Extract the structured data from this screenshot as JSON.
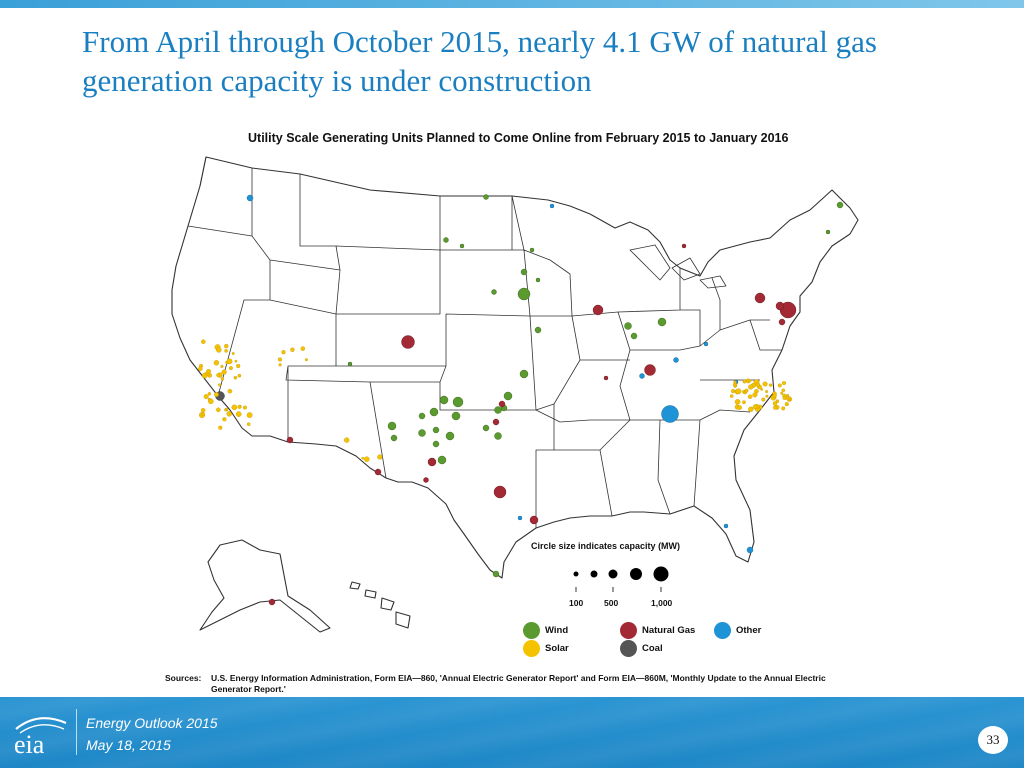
{
  "slide": {
    "title": "From April through October 2015, nearly 4.1 GW of natural gas generation capacity is under construction",
    "map_title": "Utility Scale Generating Units Planned to Come Online from February 2015 to January 2016",
    "page_number": "33"
  },
  "legend": {
    "capacity_title": "Circle size indicates capacity (MW)",
    "size_labels": [
      "100",
      "500",
      "1,000"
    ],
    "items": [
      {
        "label": "Wind",
        "color": "#5a9a2e"
      },
      {
        "label": "Natural Gas",
        "color": "#a32a35"
      },
      {
        "label": "Other",
        "color": "#1e93d6"
      },
      {
        "label": "Solar",
        "color": "#f5c200"
      },
      {
        "label": "Coal",
        "color": "#555555"
      }
    ]
  },
  "sources": {
    "label": "Sources:",
    "text": "U.S. Energy Information Administration, Form EIA—860, 'Annual Electric Generator Report' and Form EIA—860M, 'Monthly Update to the Annual Electric Generator Report.'"
  },
  "footer": {
    "logo_text": "eia",
    "line1": "Energy  Outlook 2015",
    "line2": "May 18, 2015"
  }
}
